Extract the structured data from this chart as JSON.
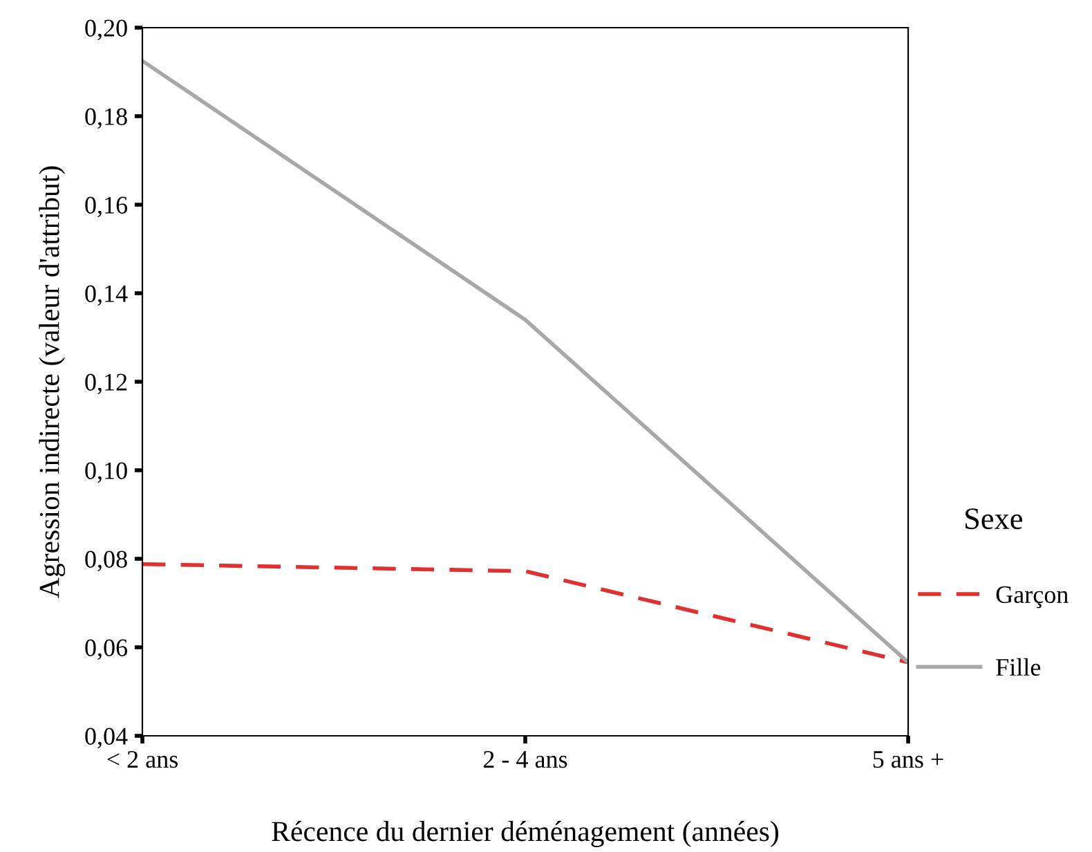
{
  "chart_data": {
    "type": "line",
    "xlabel": "Récence du dernier déménagement (années)",
    "ylabel": "Agression indirecte (valeur d'attribut)",
    "legend_title": "Sexe",
    "categories": [
      "< 2 ans",
      "2 - 4 ans",
      "5 ans +"
    ],
    "series": [
      {
        "name": "Garçon",
        "color": "#e03030",
        "line_style": "dashed",
        "values": [
          0.0788,
          0.0772,
          0.0566
        ]
      },
      {
        "name": "Fille",
        "color": "#a8a8a8",
        "line_style": "solid",
        "values": [
          0.1925,
          0.134,
          0.0566
        ]
      }
    ],
    "ylim": [
      0.04,
      0.2
    ],
    "yticks": [
      {
        "value": 0.04,
        "label": "0,04"
      },
      {
        "value": 0.06,
        "label": "0,06"
      },
      {
        "value": 0.08,
        "label": "0,08"
      },
      {
        "value": 0.1,
        "label": "0,10"
      },
      {
        "value": 0.12,
        "label": "0,12"
      },
      {
        "value": 0.14,
        "label": "0,14"
      },
      {
        "value": 0.16,
        "label": "0,16"
      },
      {
        "value": 0.18,
        "label": "0,18"
      },
      {
        "value": 0.2,
        "label": "0,20"
      }
    ],
    "grid": false,
    "legend": "right",
    "marker": "none"
  }
}
